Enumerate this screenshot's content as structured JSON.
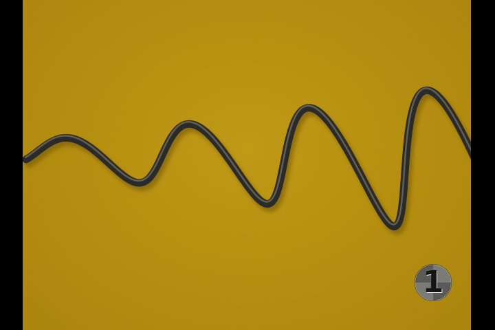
{
  "scene": {
    "background_color": "#b58c0c",
    "spring_color": "#2a2a28",
    "spring_highlight_color": "#8a8a80"
  },
  "channel_badge": {
    "number": "1",
    "disc_color": "#5a5a58"
  }
}
